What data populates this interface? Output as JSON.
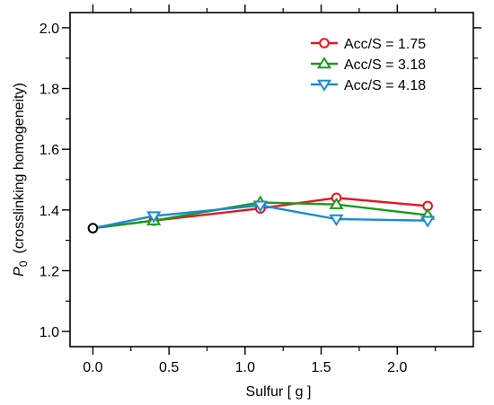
{
  "chart_data": {
    "type": "line",
    "xlabel": "Sulfur  [ g ]",
    "ylabel_symbol": "P",
    "ylabel_subscript": "0",
    "ylabel_text": "(crosslinking homogeneity)",
    "xlim": [
      -0.15,
      2.5
    ],
    "ylim": [
      0.95,
      2.05
    ],
    "xticks": [
      0.0,
      0.5,
      1.0,
      1.5,
      2.0
    ],
    "xtick_labels": [
      "0.0",
      "0.5",
      "1.0",
      "1.5",
      "2.0"
    ],
    "yticks": [
      1.0,
      1.2,
      1.4,
      1.6,
      1.8,
      2.0
    ],
    "ytick_labels": [
      "1.0",
      "1.2",
      "1.4",
      "1.6",
      "1.8",
      "2.0"
    ],
    "grid": false,
    "legend_position": "top-right",
    "origin_point": {
      "x": 0.0,
      "y": 1.34,
      "color": "#000000"
    },
    "series": [
      {
        "name": "Acc/S = 1.75",
        "color": "#e8141e",
        "marker": "circle",
        "x": [
          0.0,
          0.4,
          1.1,
          1.6,
          2.2
        ],
        "y": [
          1.34,
          1.365,
          1.405,
          1.44,
          1.413
        ]
      },
      {
        "name": "Acc/S = 3.18",
        "color": "#1a9a1a",
        "marker": "triangle-up",
        "x": [
          0.0,
          0.4,
          1.1,
          1.6,
          2.2
        ],
        "y": [
          1.34,
          1.365,
          1.425,
          1.418,
          1.383
        ]
      },
      {
        "name": "Acc/S = 4.18",
        "color": "#1a8ad4",
        "marker": "triangle-down",
        "x": [
          0.0,
          0.4,
          1.1,
          1.6,
          2.2
        ],
        "y": [
          1.34,
          1.38,
          1.415,
          1.37,
          1.365
        ]
      }
    ]
  }
}
